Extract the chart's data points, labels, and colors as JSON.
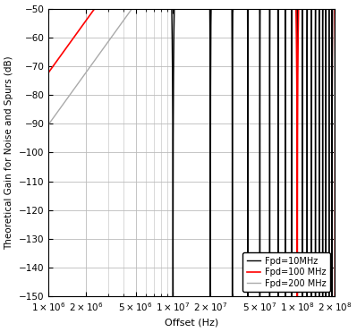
{
  "title": "",
  "ylabel": "Theoretical Gain for Noise and Spurs (dB)",
  "xlabel": "Offset (Hz)",
  "xlim": [
    1000000.0,
    200000000.0
  ],
  "ylim": [
    -150,
    -50
  ],
  "yticks": [
    -150,
    -140,
    -130,
    -120,
    -110,
    -100,
    -90,
    -80,
    -70,
    -60,
    -50
  ],
  "fpd_values": [
    10000000.0,
    100000000.0,
    200000000.0
  ],
  "colors": [
    "black",
    "red",
    "#aaaaaa"
  ],
  "linewidths": [
    1.0,
    1.2,
    1.0
  ],
  "labels": [
    "Fpd=10MHz",
    "Fpd=100 MHz",
    "Fpd=200 MHz"
  ],
  "legend_loc": "lower right",
  "background_color": "#ffffff",
  "grid_color": "#bbbbbb",
  "modulator_order": 3,
  "n_points": 500000
}
